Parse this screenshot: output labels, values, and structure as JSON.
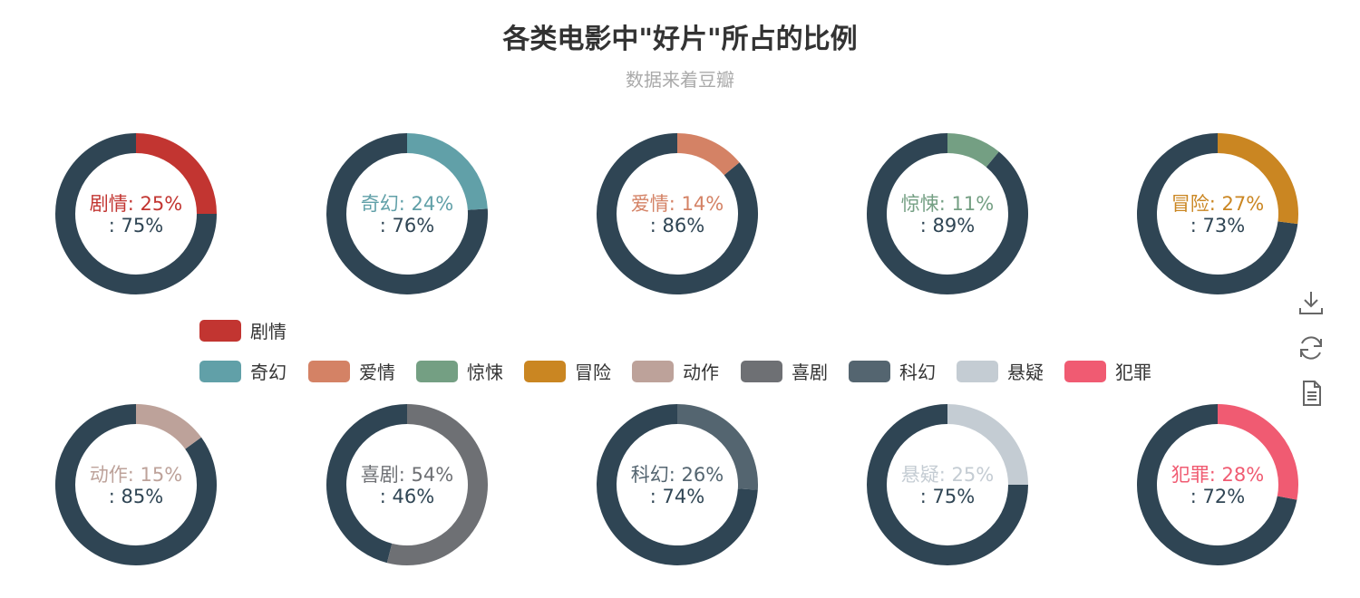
{
  "title": "各类电影中\"好片\"所占的比例",
  "subtitle": "数据来着豆瓣",
  "colors": {
    "remainder": "#2f4554",
    "title": "#333333",
    "subtitle": "#aaaaaa"
  },
  "chart_data": {
    "type": "pie",
    "variant": "donut",
    "series": [
      {
        "name": "剧情",
        "value": 25,
        "remainder": 75,
        "color": "#c23531"
      },
      {
        "name": "奇幻",
        "value": 24,
        "remainder": 76,
        "color": "#61a0a8"
      },
      {
        "name": "爱情",
        "value": 14,
        "remainder": 86,
        "color": "#d48265"
      },
      {
        "name": "惊悚",
        "value": 11,
        "remainder": 89,
        "color": "#749f83"
      },
      {
        "name": "冒险",
        "value": 27,
        "remainder": 73,
        "color": "#ca8622"
      },
      {
        "name": "动作",
        "value": 15,
        "remainder": 85,
        "color": "#bda29a"
      },
      {
        "name": "喜剧",
        "value": 54,
        "remainder": 46,
        "color": "#6e7074"
      },
      {
        "name": "科幻",
        "value": 26,
        "remainder": 74,
        "color": "#546570"
      },
      {
        "name": "悬疑",
        "value": 25,
        "remainder": 75,
        "color": "#c4ccd3"
      },
      {
        "name": "犯罪",
        "value": 28,
        "remainder": 72,
        "color": "#f05b72"
      }
    ],
    "legend": [
      "剧情",
      "奇幻",
      "爱情",
      "惊悚",
      "冒险",
      "动作",
      "喜剧",
      "科幻",
      "悬疑",
      "犯罪"
    ],
    "legend_placement": "center"
  },
  "toolbox": {
    "icons": [
      "download-icon",
      "refresh-icon",
      "data-view-icon"
    ]
  }
}
